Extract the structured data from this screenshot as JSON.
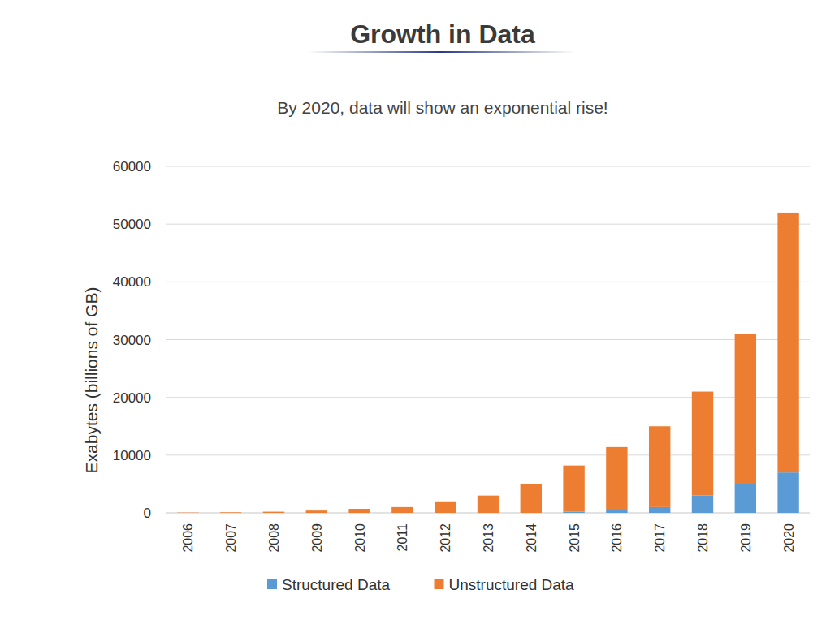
{
  "chart_data": {
    "type": "bar",
    "title": "Growth in Data",
    "subtitle": "By 2020, data will show an exponential rise!",
    "y_label": "Exabytes (billions of GB)",
    "categories": [
      "2006",
      "2007",
      "2008",
      "2009",
      "2010",
      "2011",
      "2012",
      "2013",
      "2014",
      "2015",
      "2016",
      "2017",
      "2018",
      "2019",
      "2020"
    ],
    "series": [
      {
        "name": "Structured Data",
        "color": "#5b9bd5",
        "values": [
          0,
          0,
          0,
          0,
          0,
          0,
          0,
          0,
          0,
          200,
          500,
          1000,
          3000,
          5000,
          7000
        ]
      },
      {
        "name": "Unstructured Data",
        "color": "#ed7d31",
        "values": [
          50,
          100,
          200,
          400,
          700,
          1000,
          2000,
          3000,
          5000,
          8000,
          10900,
          14000,
          18000,
          26000,
          45000
        ]
      }
    ],
    "ylim": [
      0,
      60000
    ],
    "yticks": [
      0,
      10000,
      20000,
      30000,
      40000,
      50000,
      60000
    ],
    "stacked": true,
    "grid": true,
    "legend": "bottom"
  }
}
